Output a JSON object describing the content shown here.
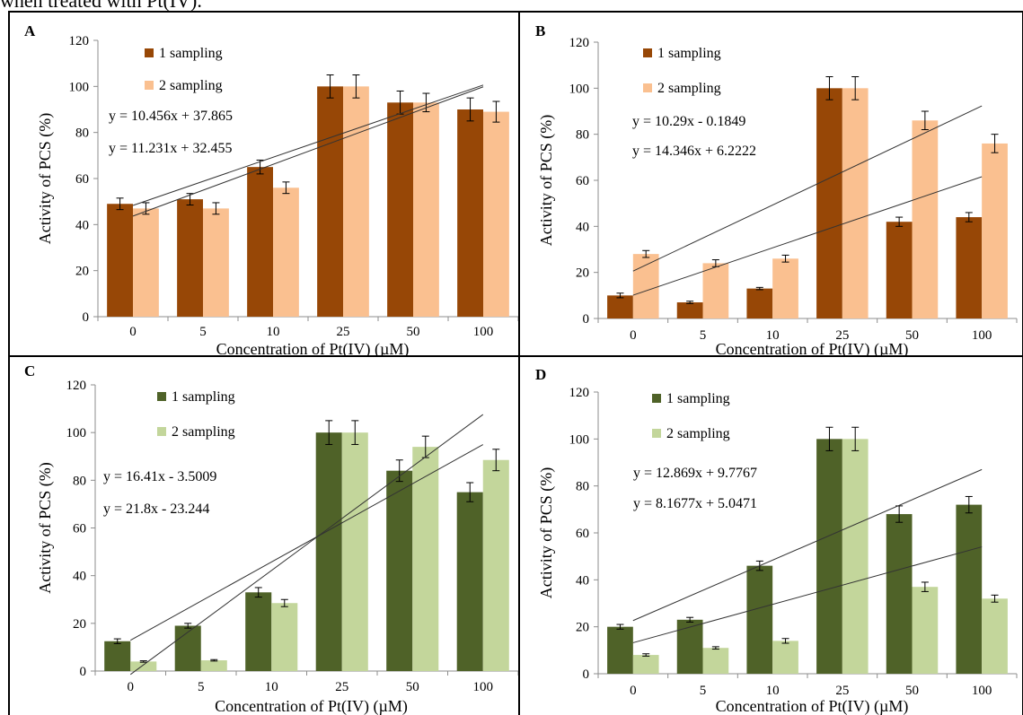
{
  "caption": "when treated with Pt(IV).",
  "colors": {
    "A": [
      "#974706",
      "#fac090"
    ],
    "B": [
      "#974706",
      "#fac090"
    ],
    "C": [
      "#4f6228",
      "#c3d69b"
    ],
    "D": [
      "#4f6228",
      "#c3d69b"
    ]
  },
  "chart_data": [
    {
      "panel": "A",
      "type": "bar",
      "categories": [
        "0",
        "5",
        "10",
        "25",
        "50",
        "100"
      ],
      "series": [
        {
          "name": "1 sampling",
          "values": [
            49,
            51,
            65,
            100,
            93,
            90
          ],
          "errors": [
            2.5,
            2.5,
            3,
            5,
            5,
            5
          ]
        },
        {
          "name": "2 sampling",
          "values": [
            47,
            47,
            56,
            100,
            93,
            89
          ],
          "errors": [
            2.5,
            2.5,
            2.5,
            5,
            4,
            4.5
          ]
        }
      ],
      "equations": [
        "y = 10.456x + 37.865",
        "y = 11.231x + 32.455"
      ],
      "trendlines": [
        {
          "slope": 10.456,
          "intercept": 37.865
        },
        {
          "slope": 11.231,
          "intercept": 32.455
        }
      ],
      "xlabel": "Concentration of Pt(IV) (µM)",
      "ylabel": "Activity of PCS (%)",
      "ylim": [
        0,
        120
      ],
      "yticks": [
        0,
        20,
        40,
        60,
        80,
        100,
        120
      ],
      "grid": false,
      "legend": "top-left"
    },
    {
      "panel": "B",
      "type": "bar",
      "categories": [
        "0",
        "5",
        "10",
        "25",
        "50",
        "100"
      ],
      "series": [
        {
          "name": "1 sampling",
          "values": [
            10,
            7,
            13,
            100,
            42,
            44
          ],
          "errors": [
            1,
            0.5,
            0.5,
            5,
            2,
            2
          ]
        },
        {
          "name": "2 sampling",
          "values": [
            28,
            24,
            26,
            100,
            86,
            76
          ],
          "errors": [
            1.5,
            1.5,
            1.5,
            5,
            4,
            4
          ]
        }
      ],
      "equations": [
        "y = 10.29x - 0.1849",
        "y = 14.346x + 6.2222"
      ],
      "trendlines": [
        {
          "slope": 10.29,
          "intercept": -0.1849
        },
        {
          "slope": 14.346,
          "intercept": 6.2222
        }
      ],
      "xlabel": "Concentration of Pt(IV) (µM)",
      "ylabel": "Activity of PCS (%)",
      "ylim": [
        0,
        120
      ],
      "yticks": [
        0,
        20,
        40,
        60,
        80,
        100,
        120
      ],
      "grid": false,
      "legend": "top-left"
    },
    {
      "panel": "C",
      "type": "bar",
      "categories": [
        "0",
        "5",
        "10",
        "25",
        "50",
        "100"
      ],
      "series": [
        {
          "name": "1 sampling",
          "values": [
            12.5,
            19,
            33,
            100,
            84,
            75
          ],
          "errors": [
            1,
            1,
            2,
            5,
            4.5,
            4
          ]
        },
        {
          "name": "2 sampling",
          "values": [
            4,
            4.5,
            28.5,
            100,
            94,
            88.5
          ],
          "errors": [
            0.3,
            0.3,
            1.5,
            5,
            4.5,
            4.5
          ]
        }
      ],
      "equations": [
        "y = 16.41x - 3.5009",
        "y = 21.8x - 23.244"
      ],
      "trendlines": [
        {
          "slope": 16.41,
          "intercept": -3.5009
        },
        {
          "slope": 21.8,
          "intercept": -23.244
        }
      ],
      "xlabel": "Concentration of Pt(IV) (µM)",
      "ylabel": "Activity of PCS (%)",
      "ylim": [
        0,
        120
      ],
      "yticks": [
        0,
        20,
        40,
        60,
        80,
        100,
        120
      ],
      "grid": false,
      "legend": "top-left"
    },
    {
      "panel": "D",
      "type": "bar",
      "categories": [
        "0",
        "5",
        "10",
        "25",
        "50",
        "100"
      ],
      "series": [
        {
          "name": "1 sampling",
          "values": [
            20,
            23,
            46,
            100,
            68,
            72
          ],
          "errors": [
            1,
            1,
            2,
            5,
            3.5,
            3.5
          ]
        },
        {
          "name": "2 sampling",
          "values": [
            8,
            11,
            14,
            100,
            37,
            32
          ],
          "errors": [
            0.5,
            0.5,
            1,
            5,
            2,
            1.5
          ]
        }
      ],
      "equations": [
        "y = 12.869x + 9.7767",
        "y = 8.1677x + 5.0471"
      ],
      "trendlines": [
        {
          "slope": 12.869,
          "intercept": 9.7767
        },
        {
          "slope": 8.1677,
          "intercept": 5.0471
        }
      ],
      "xlabel": "Concentration of Pt(IV) (µM)",
      "ylabel": "Activity of PCS (%)",
      "ylim": [
        0,
        120
      ],
      "yticks": [
        0,
        20,
        40,
        60,
        80,
        100,
        120
      ],
      "grid": false,
      "legend": "top-left"
    }
  ]
}
